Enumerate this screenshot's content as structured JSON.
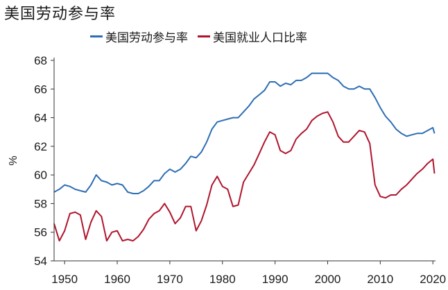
{
  "chart_data": {
    "type": "line",
    "title": "美国劳动参与率",
    "ylabel": "%",
    "xlim": [
      1948,
      2020.5
    ],
    "ylim": [
      54,
      68
    ],
    "xticks": [
      1950,
      1960,
      1970,
      1980,
      1990,
      2000,
      2010,
      2020
    ],
    "yticks": [
      54,
      56,
      58,
      60,
      62,
      64,
      66,
      68
    ],
    "legend_position": "top",
    "grid": false,
    "series": [
      {
        "name": "美国劳动参与率",
        "color": "#2e6db4",
        "x": [
          1948,
          1949,
          1950,
          1951,
          1952,
          1953,
          1954,
          1955,
          1956,
          1957,
          1958,
          1959,
          1960,
          1961,
          1962,
          1963,
          1964,
          1965,
          1966,
          1967,
          1968,
          1969,
          1970,
          1971,
          1972,
          1973,
          1974,
          1975,
          1976,
          1977,
          1978,
          1979,
          1980,
          1981,
          1982,
          1983,
          1984,
          1985,
          1986,
          1987,
          1988,
          1989,
          1990,
          1991,
          1992,
          1993,
          1994,
          1995,
          1996,
          1997,
          1998,
          1999,
          2000,
          2001,
          2002,
          2003,
          2004,
          2005,
          2006,
          2007,
          2008,
          2009,
          2010,
          2011,
          2012,
          2013,
          2014,
          2015,
          2016,
          2017,
          2018,
          2019,
          2020,
          2020.3
        ],
        "values": [
          58.8,
          59.0,
          59.3,
          59.2,
          59.0,
          58.9,
          58.8,
          59.3,
          60.0,
          59.6,
          59.5,
          59.3,
          59.4,
          59.3,
          58.8,
          58.7,
          58.7,
          58.9,
          59.2,
          59.6,
          59.6,
          60.1,
          60.4,
          60.2,
          60.4,
          60.8,
          61.3,
          61.2,
          61.6,
          62.3,
          63.2,
          63.7,
          63.8,
          63.9,
          64.0,
          64.0,
          64.4,
          64.8,
          65.3,
          65.6,
          65.9,
          66.5,
          66.5,
          66.2,
          66.4,
          66.3,
          66.6,
          66.6,
          66.8,
          67.1,
          67.1,
          67.1,
          67.1,
          66.8,
          66.6,
          66.2,
          66.0,
          66.0,
          66.2,
          66.0,
          66.0,
          65.4,
          64.7,
          64.1,
          63.7,
          63.2,
          62.9,
          62.7,
          62.8,
          62.9,
          62.9,
          63.1,
          63.3,
          62.9
        ]
      },
      {
        "name": "美国就业人口比率",
        "color": "#b0142c",
        "x": [
          1948,
          1949,
          1950,
          1951,
          1952,
          1953,
          1954,
          1955,
          1956,
          1957,
          1958,
          1959,
          1960,
          1961,
          1962,
          1963,
          1964,
          1965,
          1966,
          1967,
          1968,
          1969,
          1970,
          1971,
          1972,
          1973,
          1974,
          1975,
          1976,
          1977,
          1978,
          1979,
          1980,
          1981,
          1982,
          1983,
          1984,
          1985,
          1986,
          1987,
          1988,
          1989,
          1990,
          1991,
          1992,
          1993,
          1994,
          1995,
          1996,
          1997,
          1998,
          1999,
          2000,
          2001,
          2002,
          2003,
          2004,
          2005,
          2006,
          2007,
          2008,
          2009,
          2010,
          2011,
          2012,
          2013,
          2014,
          2015,
          2016,
          2017,
          2018,
          2019,
          2020,
          2020.3
        ],
        "values": [
          56.6,
          55.4,
          56.1,
          57.3,
          57.4,
          57.2,
          55.5,
          56.7,
          57.5,
          57.1,
          55.4,
          56.0,
          56.1,
          55.4,
          55.5,
          55.4,
          55.7,
          56.2,
          56.9,
          57.3,
          57.5,
          58.0,
          57.4,
          56.6,
          57.0,
          57.8,
          57.8,
          56.1,
          56.8,
          57.9,
          59.3,
          59.9,
          59.2,
          59.0,
          57.8,
          57.9,
          59.5,
          60.1,
          60.7,
          61.5,
          62.3,
          63.0,
          62.8,
          61.7,
          61.5,
          61.7,
          62.5,
          62.9,
          63.2,
          63.8,
          64.1,
          64.3,
          64.4,
          63.7,
          62.7,
          62.3,
          62.3,
          62.7,
          63.1,
          63.0,
          62.2,
          59.3,
          58.5,
          58.4,
          58.6,
          58.6,
          59.0,
          59.3,
          59.7,
          60.1,
          60.4,
          60.8,
          61.1,
          60.1
        ]
      }
    ]
  }
}
